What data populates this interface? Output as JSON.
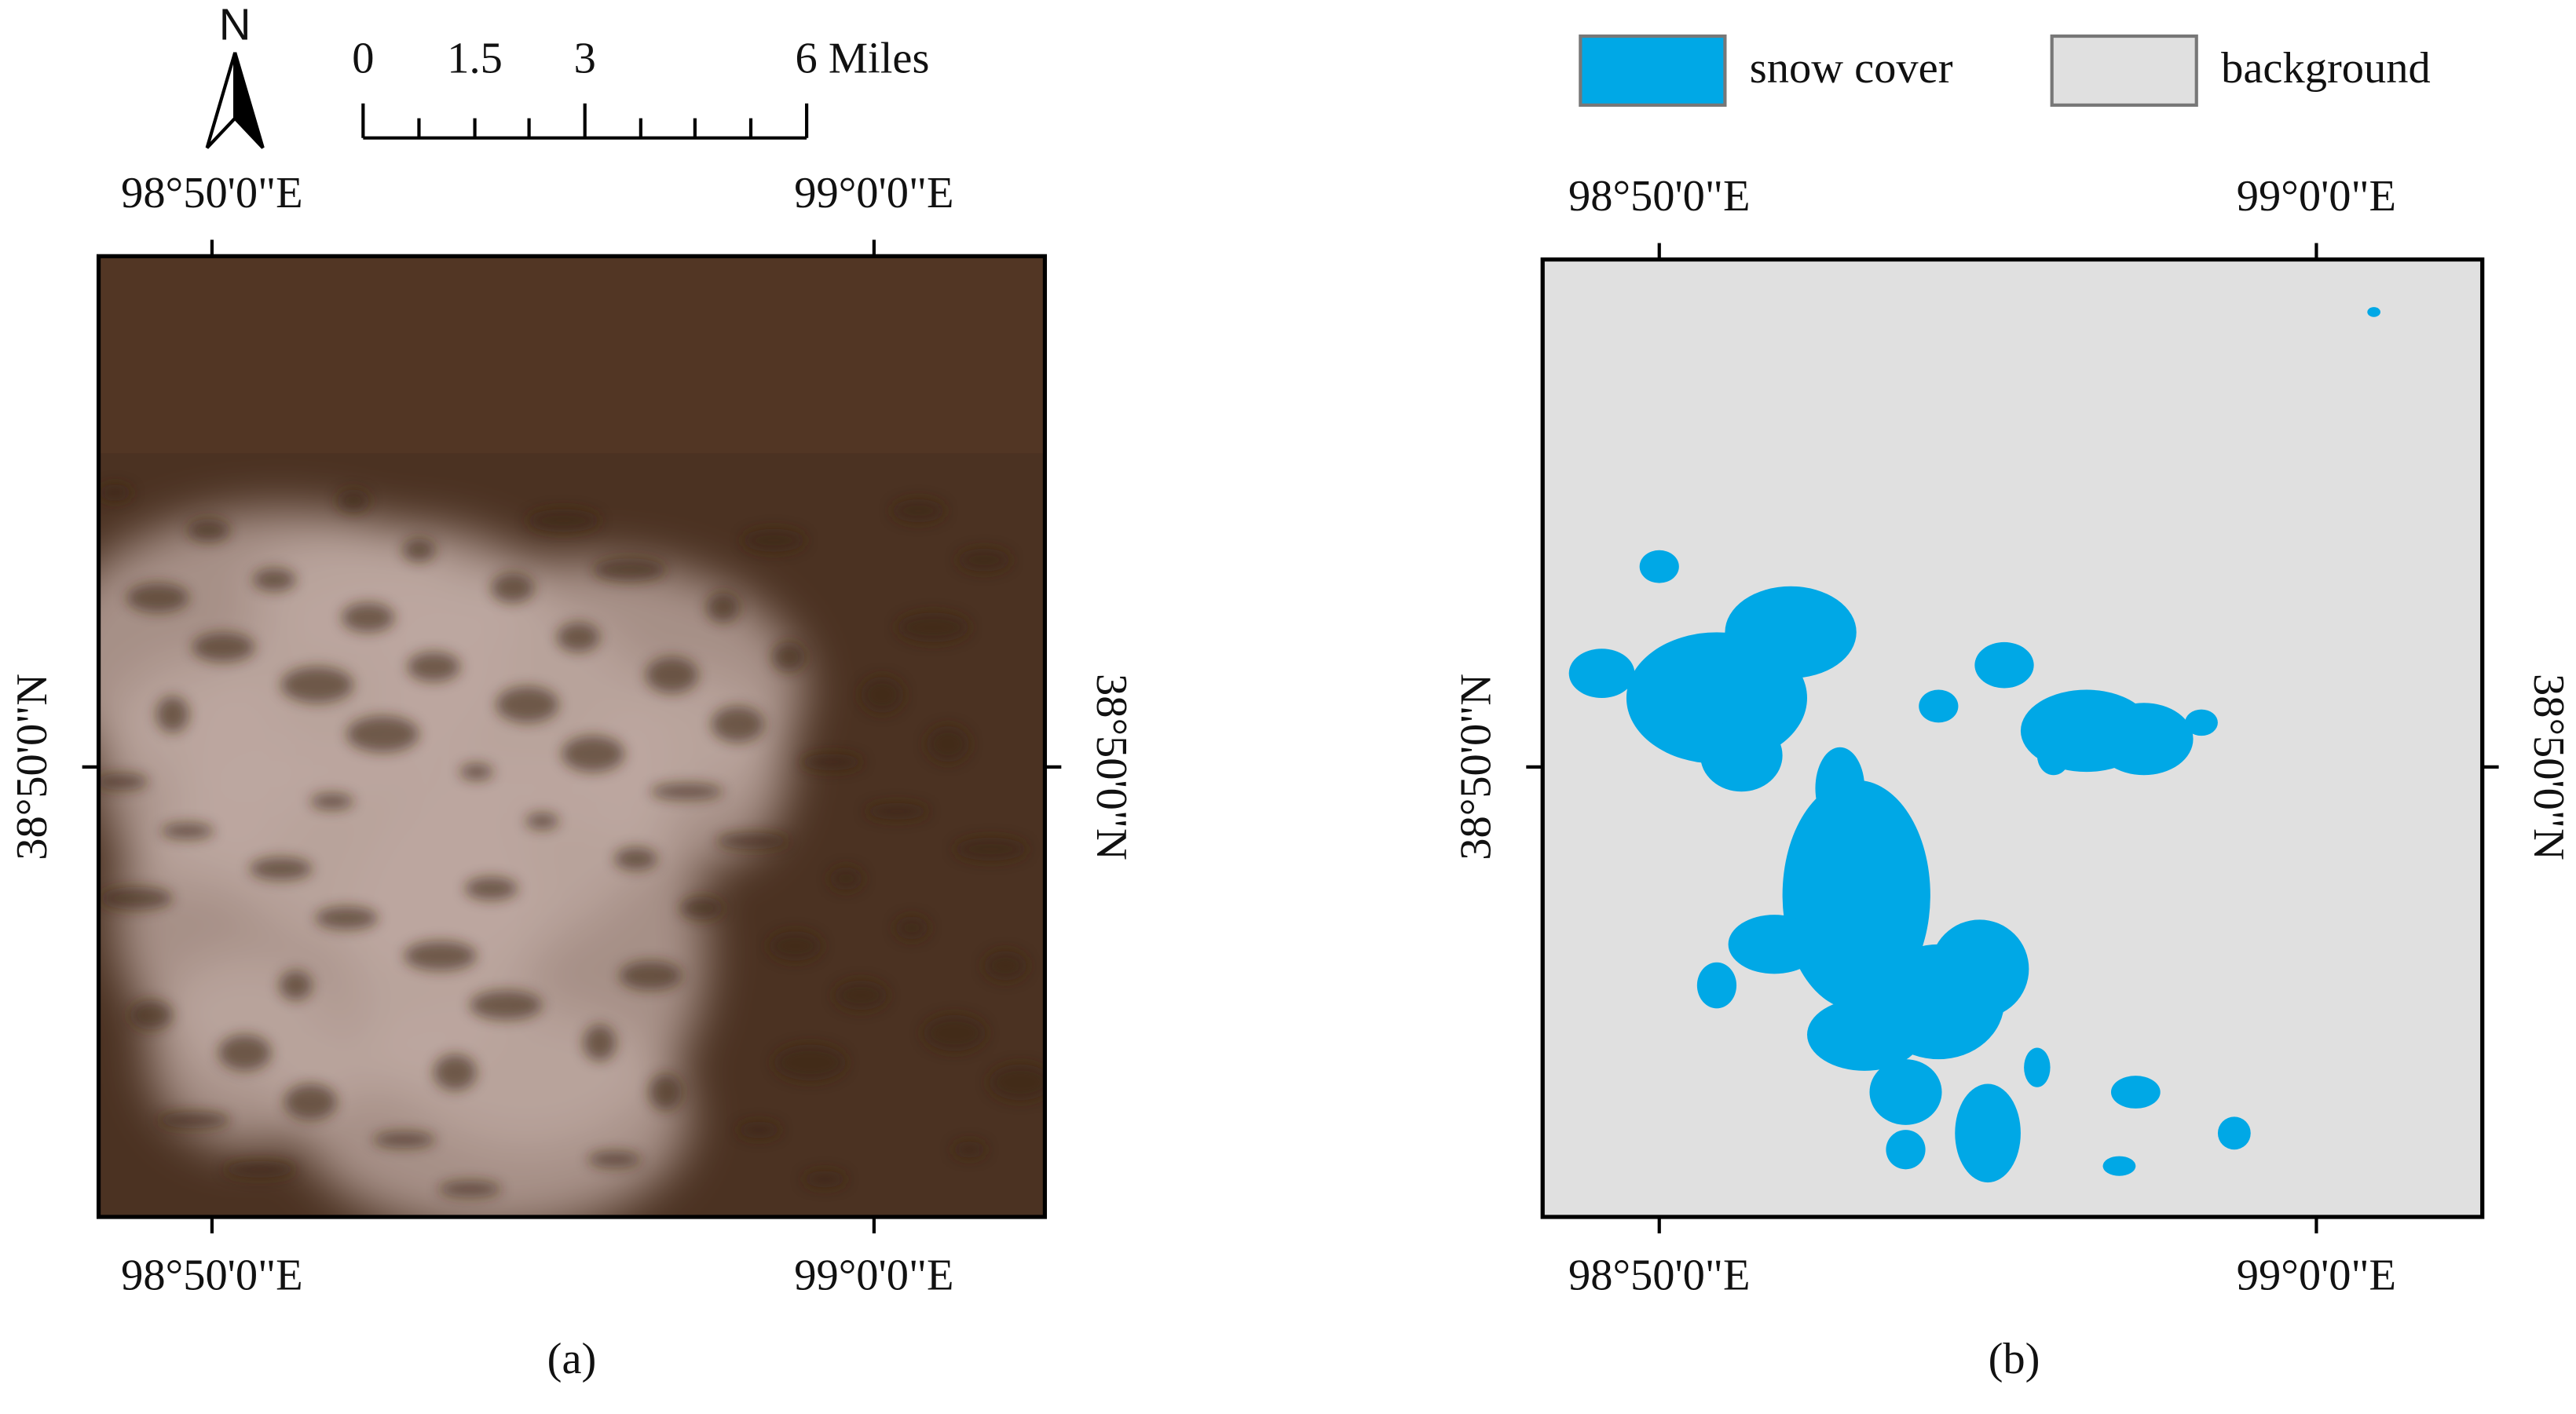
{
  "north": "N",
  "scale_bar": {
    "labels": [
      "0",
      "1.5",
      "3",
      "6 Miles"
    ]
  },
  "legend": [
    {
      "label": "snow cover",
      "color": "#00a8e6"
    },
    {
      "label": "background",
      "color": "#e0e0e0"
    }
  ],
  "panels": [
    {
      "caption": "(a)",
      "top_labels": [
        "98°50'0\"E",
        "99°0'0\"E"
      ],
      "bottom_labels": [
        "98°50'0\"E",
        "99°0'0\"E"
      ],
      "left_label": "38°50'0\"N",
      "right_label": "38°50'0\"N"
    },
    {
      "caption": "(b)",
      "top_labels": [
        "98°50'0\"E",
        "99°0'0\"E"
      ],
      "bottom_labels": [
        "98°50'0\"E",
        "99°0'0\"E"
      ],
      "left_label": "38°50'0\"N",
      "right_label": "38°50'0\"N"
    }
  ]
}
